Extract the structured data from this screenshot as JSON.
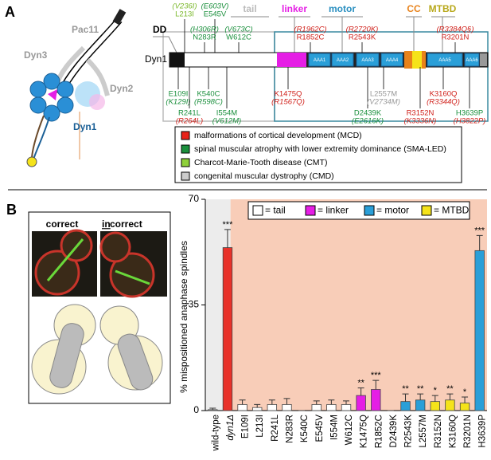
{
  "panel_a": {
    "letter": "A",
    "complex": {
      "pac11": "Pac11",
      "dyn3": "Dyn3",
      "dyn2": "Dyn2",
      "dyn1": "Dyn1"
    },
    "domains": {
      "dd": "DD",
      "tail": "tail",
      "linker": "linker",
      "motor": "motor",
      "cc": "CC",
      "mtbd": "MTBD"
    },
    "protein": "Dyn1",
    "aaa": [
      "AAA1",
      "AAA2",
      "AAA3",
      "AAA4",
      "AAA5",
      "AAA6"
    ],
    "mutations": [
      {
        "text": "(V236I)",
        "color": "#7ab82a"
      },
      {
        "text": "L213I",
        "color": "#7ab82a"
      },
      {
        "text": "(E603V)",
        "color": "#1a8f3c"
      },
      {
        "text": "E545V",
        "color": "#1a8f3c"
      },
      {
        "text": "(H306R)",
        "color": "#1a8f3c"
      },
      {
        "text": "N283R",
        "color": "#1a8f3c"
      },
      {
        "text": "(V673C)",
        "color": "#1a8f3c"
      },
      {
        "text": "W612C",
        "color": "#1a8f3c"
      },
      {
        "text": "(R1962C)",
        "color": "#d0201a"
      },
      {
        "text": "R1852C",
        "color": "#d0201a"
      },
      {
        "text": "(R2720K)",
        "color": "#d0201a"
      },
      {
        "text": "R2543K",
        "color": "#d0201a"
      },
      {
        "text": "(R3384Q§)",
        "color": "#d0201a"
      },
      {
        "text": "R3201N",
        "color": "#d0201a"
      },
      {
        "text": "E109I",
        "color": "#1a8f3c"
      },
      {
        "text": "(K129I)",
        "color": "#1a8f3c"
      },
      {
        "text": "R241L",
        "color": "#1a8f3c"
      },
      {
        "text": "(R264L)",
        "color": "#d0201a"
      },
      {
        "text": "K540C",
        "color": "#1a8f3c"
      },
      {
        "text": "(R598C)",
        "color": "#1a8f3c"
      },
      {
        "text": "I554M",
        "color": "#1a8f3c"
      },
      {
        "text": "(V612M)",
        "color": "#1a8f3c"
      },
      {
        "text": "K1475Q",
        "color": "#d0201a"
      },
      {
        "text": "(R1567Q)",
        "color": "#d0201a"
      },
      {
        "text": "D2439K",
        "color": "#1a8f3c"
      },
      {
        "text": "(E2616K)",
        "color": "#1a8f3c"
      },
      {
        "text": "L2557M",
        "color": "#999999"
      },
      {
        "text": "(V2734M)",
        "color": "#999999"
      },
      {
        "text": "R3152N",
        "color": "#d0201a"
      },
      {
        "text": "(K3336N)",
        "color": "#d0201a"
      },
      {
        "text": "K3160Q",
        "color": "#d0201a"
      },
      {
        "text": "(R3344Q)",
        "color": "#d0201a"
      },
      {
        "text": "H3639P",
        "color": "#1a8f3c"
      },
      {
        "text": "(H3822P)",
        "color": "#d0201a"
      }
    ],
    "legend": [
      {
        "label": "malformations of cortical development (MCD)",
        "color": "#e8221a"
      },
      {
        "label": "spinal muscular atrophy with lower extremity dominance (SMA-LED)",
        "color": "#1a8f3c"
      },
      {
        "label": "Charcot-Marie-Tooth disease (CMT)",
        "color": "#8fd13a"
      },
      {
        "label": "congenital muscular dystrophy (CMD)",
        "color": "#cccccc"
      }
    ]
  },
  "panel_b": {
    "letter": "B",
    "correct": "correct",
    "incorrect_prefix": "in",
    "incorrect_rest": "correct"
  },
  "chart_data": {
    "type": "bar",
    "ylabel": "% mispositioned anaphase spindles",
    "categories": [
      "wild-type",
      "dyn1Δ",
      "E109I",
      "L213I",
      "R241L",
      "N283R",
      "K540C",
      "E545V",
      "I554M",
      "W612C",
      "K1475Q",
      "R1852C",
      "D2439K",
      "R2543K",
      "L2557M",
      "R3152N",
      "K3160Q",
      "R3201N",
      "H3639P"
    ],
    "values": [
      0.3,
      54,
      2,
      1,
      2,
      2,
      0,
      2,
      2,
      2,
      5,
      7,
      0,
      3,
      3.5,
      3,
      3.5,
      2.5,
      53
    ],
    "errors": [
      0.5,
      6,
      1.5,
      1,
      1.5,
      2,
      0,
      1.2,
      1.5,
      1.2,
      2.5,
      3,
      0,
      2.5,
      2,
      2,
      2,
      2,
      5
    ],
    "colors": [
      "#aaaaaa",
      "#e8322a",
      "#ffffff",
      "#ffffff",
      "#ffffff",
      "#ffffff",
      "#ffffff",
      "#ffffff",
      "#ffffff",
      "#ffffff",
      "#e51ee5",
      "#e51ee5",
      "#2a9fd8",
      "#2a9fd8",
      "#2a9fd8",
      "#f5e31a",
      "#f5e31a",
      "#f5e31a",
      "#2a9fd8"
    ],
    "significance": [
      null,
      "***",
      null,
      null,
      null,
      null,
      null,
      null,
      null,
      null,
      "**",
      "***",
      null,
      "**",
      "**",
      "*",
      "**",
      "*",
      "***"
    ],
    "ylim": [
      0,
      70
    ],
    "yticks": [
      0,
      35,
      70
    ],
    "legend": [
      {
        "label": "= tail",
        "color": "#ffffff"
      },
      {
        "label": "= linker",
        "color": "#e51ee5"
      },
      {
        "label": "= motor",
        "color": "#2a9fd8"
      },
      {
        "label": "= MTBD",
        "color": "#f5e31a"
      }
    ]
  }
}
